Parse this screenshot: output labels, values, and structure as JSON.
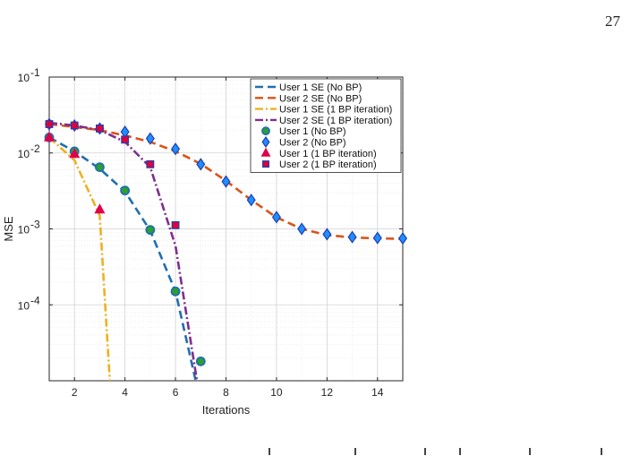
{
  "page": {
    "number": "27"
  },
  "chart_data": {
    "type": "line",
    "xlabel": "Iterations",
    "ylabel": "MSE",
    "xlim": [
      1,
      15
    ],
    "ylim": [
      1e-05,
      0.1
    ],
    "yscale": "log",
    "grid": true,
    "legend_position": "top-right",
    "x_ticks": [
      2,
      4,
      6,
      8,
      10,
      12,
      14
    ],
    "x_tick_labels": [
      "2",
      "4",
      "6",
      "8",
      "10",
      "12",
      "14"
    ],
    "y_ticks": [
      0.1,
      0.01,
      0.001,
      0.0001
    ],
    "y_tick_labels": [
      {
        "base": "10",
        "exp": "-1"
      },
      {
        "base": "10",
        "exp": "-2"
      },
      {
        "base": "10",
        "exp": "-3"
      },
      {
        "base": "10",
        "exp": "-4"
      }
    ],
    "series": [
      {
        "name": "User 1 SE (No BP)",
        "kind": "line",
        "color": "#1f6fb0",
        "dash": "9,5",
        "x": [
          1,
          2,
          3,
          4,
          5,
          6,
          6.8
        ],
        "y": [
          0.016,
          0.0105,
          0.0062,
          0.0031,
          0.00095,
          0.00015,
          1e-05
        ]
      },
      {
        "name": "User 2 SE (No BP)",
        "kind": "line",
        "color": "#d95319",
        "dash": "9,5",
        "x": [
          1,
          2,
          3,
          4,
          5,
          6,
          7,
          8,
          9,
          10,
          11,
          12,
          13,
          14,
          15
        ],
        "y": [
          0.024,
          0.022,
          0.02,
          0.017,
          0.014,
          0.0105,
          0.0072,
          0.0043,
          0.0024,
          0.00142,
          0.001,
          0.00083,
          0.00077,
          0.00075,
          0.00074
        ]
      },
      {
        "name": "User 1 SE (1 BP iteration)",
        "kind": "line",
        "color": "#edb120",
        "dash": "9,3,2,3",
        "x": [
          1,
          2,
          3,
          3.4
        ],
        "y": [
          0.016,
          0.008,
          0.0015,
          1e-05
        ]
      },
      {
        "name": "User 2 SE (1 BP iteration)",
        "kind": "line",
        "color": "#7e2f8e",
        "dash": "9,3,2,3",
        "x": [
          1,
          2,
          3,
          4,
          5,
          6,
          6.85
        ],
        "y": [
          0.025,
          0.023,
          0.02,
          0.014,
          0.0065,
          0.0006,
          1e-05
        ]
      },
      {
        "name": "User 1 (No BP)",
        "kind": "marker",
        "marker": "circle",
        "color": "#1f6fb0",
        "fill": "#2ca02c",
        "x": [
          1,
          2,
          3,
          4,
          5,
          6,
          7
        ],
        "y": [
          0.016,
          0.0105,
          0.0065,
          0.0032,
          0.00097,
          0.00015,
          1.8e-05
        ]
      },
      {
        "name": "User 2 (No BP)",
        "kind": "marker",
        "marker": "diamond",
        "color": "#1f3fb0",
        "fill": "#1f8fff",
        "x": [
          1,
          2,
          3,
          4,
          5,
          6,
          7,
          8,
          9,
          10,
          11,
          12,
          13,
          14,
          15
        ],
        "y": [
          0.024,
          0.023,
          0.021,
          0.019,
          0.0155,
          0.0113,
          0.0071,
          0.0042,
          0.0024,
          0.00143,
          0.001,
          0.00085,
          0.00078,
          0.00076,
          0.00075
        ]
      },
      {
        "name": "User 1 (1 BP iteration)",
        "kind": "marker",
        "marker": "triangle",
        "color": "#e0004a",
        "fill": "#e0004a",
        "x": [
          1,
          2,
          3
        ],
        "y": [
          0.016,
          0.0097,
          0.0018
        ]
      },
      {
        "name": "User 2 (1 BP iteration)",
        "kind": "marker",
        "marker": "square",
        "color": "#1f3fb0",
        "fill": "#e0003a",
        "x": [
          1,
          2,
          3,
          4,
          5,
          6
        ],
        "y": [
          0.024,
          0.023,
          0.021,
          0.015,
          0.0071,
          0.00112
        ]
      }
    ]
  }
}
